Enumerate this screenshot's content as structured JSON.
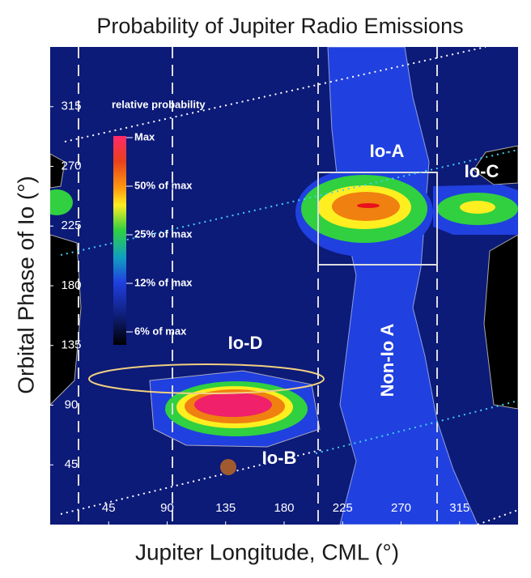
{
  "chart_data": {
    "type": "heatmap",
    "title": "Probability of Jupiter Radio Emissions",
    "x_label": "Jupiter Longitude, CML (°)",
    "y_label": "Orbital Phase of Io (°)",
    "xlim": [
      0,
      360
    ],
    "ylim": [
      0,
      360
    ],
    "xticks": [
      45,
      90,
      135,
      180,
      225,
      270,
      315
    ],
    "yticks": [
      45,
      90,
      135,
      180,
      225,
      270,
      315
    ],
    "legend_title": "relative probability",
    "legend_labels": [
      "Max",
      "50% of max",
      "25% of max",
      "12% of max",
      "6% of max"
    ],
    "annotations": [
      "Io-A",
      "Io-C",
      "Io-D",
      "Io-B",
      "Non-Io A"
    ]
  }
}
